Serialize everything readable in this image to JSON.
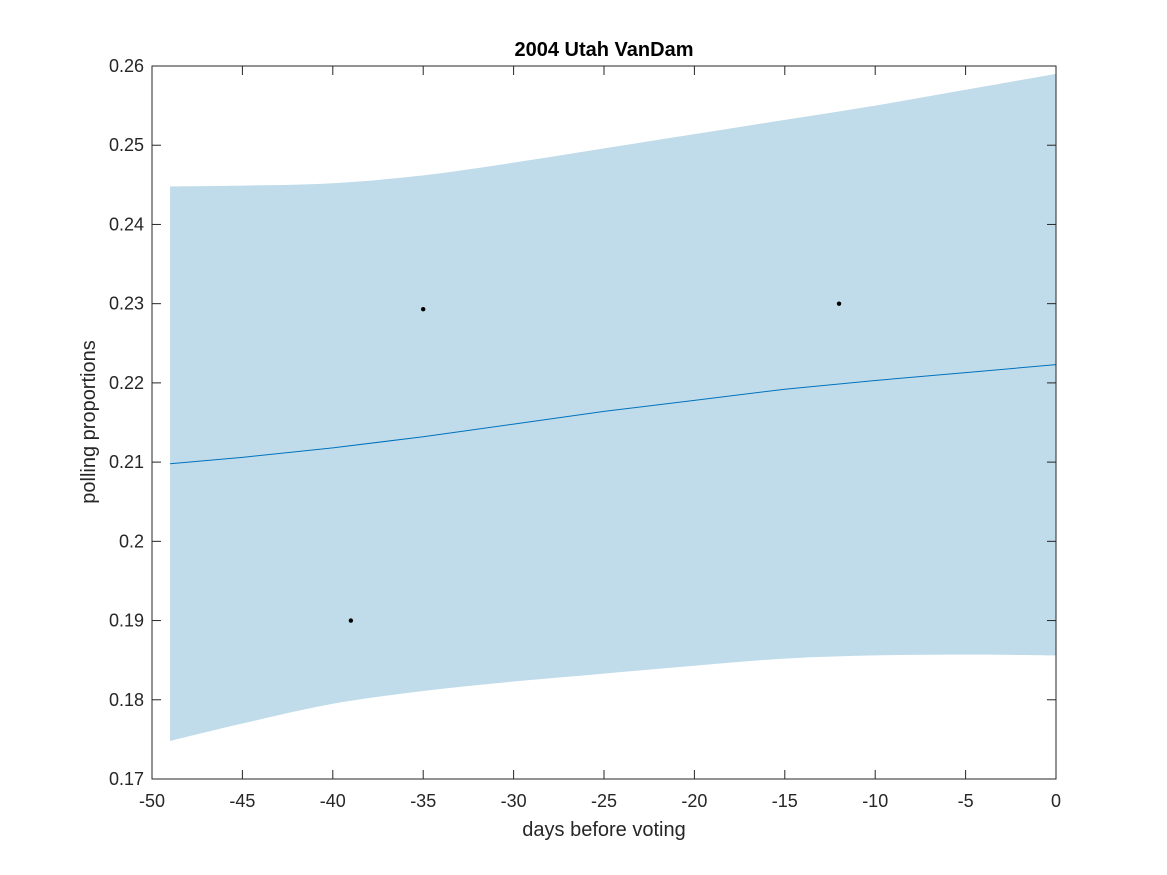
{
  "chart_data": {
    "type": "line",
    "title": "2004 Utah VanDam",
    "xlabel": "days before voting",
    "ylabel": "polling proportions",
    "xlim": [
      -50,
      0
    ],
    "ylim": [
      0.17,
      0.26
    ],
    "x_ticks": [
      -50,
      -45,
      -40,
      -35,
      -30,
      -25,
      -20,
      -15,
      -10,
      -5,
      0
    ],
    "x_tick_labels": [
      "-50",
      "-45",
      "-40",
      "-35",
      "-30",
      "-25",
      "-20",
      "-15",
      "-10",
      "-5",
      "0"
    ],
    "y_ticks": [
      0.17,
      0.18,
      0.19,
      0.2,
      0.21,
      0.22,
      0.23,
      0.24,
      0.25,
      0.26
    ],
    "y_tick_labels": [
      "0.17",
      "0.18",
      "0.19",
      "0.2",
      "0.21",
      "0.22",
      "0.23",
      "0.24",
      "0.25",
      "0.26"
    ],
    "grid": false,
    "band": {
      "x": [
        -49,
        -45,
        -40,
        -35,
        -30,
        -25,
        -20,
        -15,
        -10,
        -5,
        0
      ],
      "upper": [
        0.2448,
        0.2449,
        0.2452,
        0.2462,
        0.2478,
        0.2496,
        0.2514,
        0.2532,
        0.255,
        0.257,
        0.259
      ],
      "lower": [
        0.1748,
        0.177,
        0.1795,
        0.1811,
        0.1823,
        0.1833,
        0.1843,
        0.1852,
        0.1856,
        0.1857,
        0.1856
      ],
      "color": "#c0dcea"
    },
    "series": [
      {
        "x": [
          -49,
          -45,
          -40,
          -35,
          -30,
          -25,
          -20,
          -15,
          -10,
          -5,
          0
        ],
        "values": [
          0.2098,
          0.2106,
          0.2118,
          0.2132,
          0.2148,
          0.2164,
          0.2178,
          0.2192,
          0.2203,
          0.2213,
          0.2223
        ],
        "color": "#0072bd"
      }
    ],
    "points": {
      "x": [
        -39,
        -35,
        -12
      ],
      "y": [
        0.19,
        0.2293,
        0.23
      ],
      "color": "#000000"
    }
  }
}
